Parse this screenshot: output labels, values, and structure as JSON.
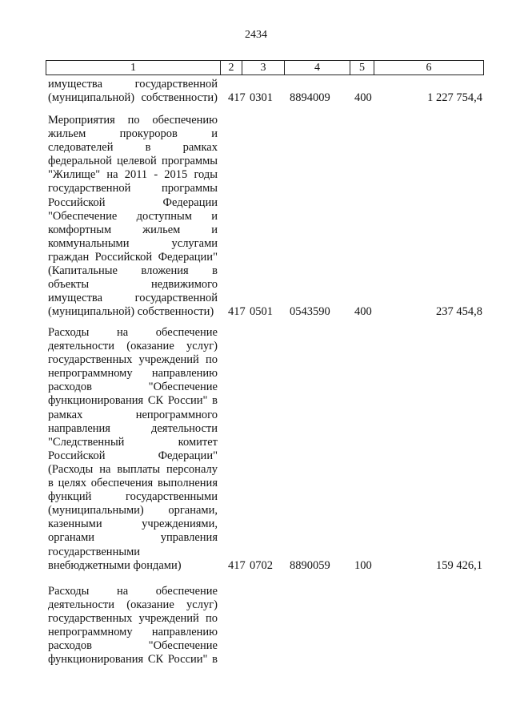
{
  "page_number": "2434",
  "header": [
    "1",
    "2",
    "3",
    "4",
    "5",
    "6"
  ],
  "rows": [
    {
      "lines": [
        "имущества государственной",
        "(муниципальной) собственности)"
      ],
      "values": [
        "417",
        "0301",
        "8894009",
        "400",
        "1 227 754,4"
      ]
    },
    {
      "lines": [
        "Мероприятия по обеспечению",
        "жильем прокуроров и",
        "следователей в рамках",
        "федеральной целевой программы",
        "\"Жилище\" на 2011 - 2015 годы",
        "государственной программы",
        "Российской Федерации",
        "\"Обеспечение доступным и",
        "комфортным жильем и",
        "коммунальными услугами",
        "граждан Российской Федерации\"",
        "(Капитальные вложения в",
        "объекты недвижимого",
        "имущества государственной",
        "(муниципальной) собственности)"
      ],
      "values": [
        "417",
        "0501",
        "0543590",
        "400",
        "237 454,8"
      ]
    },
    {
      "lines": [
        "Расходы на обеспечение",
        "деятельности (оказание услуг)",
        "государственных учреждений по",
        "непрограммному направлению",
        "расходов \"Обеспечение",
        "функционирования СК России\" в",
        "рамках непрограммного",
        "направления деятельности",
        "\"Следственный комитет",
        "Российской Федерации\"",
        "(Расходы на выплаты персоналу",
        "в целях обеспечения выполнения",
        "функций государственными",
        "(муниципальными) органами,",
        "казенными учреждениями,",
        "органами управления",
        "государственными",
        "внебюджетными фондами)"
      ],
      "values": [
        "417",
        "0702",
        "8890059",
        "100",
        "159 426,1"
      ]
    },
    {
      "lines": [
        "Расходы на обеспечение",
        "деятельности (оказание услуг)",
        "государственных учреждений по",
        "непрограммному направлению",
        "расходов \"Обеспечение",
        "функционирования СК России\" в"
      ],
      "values": []
    }
  ]
}
